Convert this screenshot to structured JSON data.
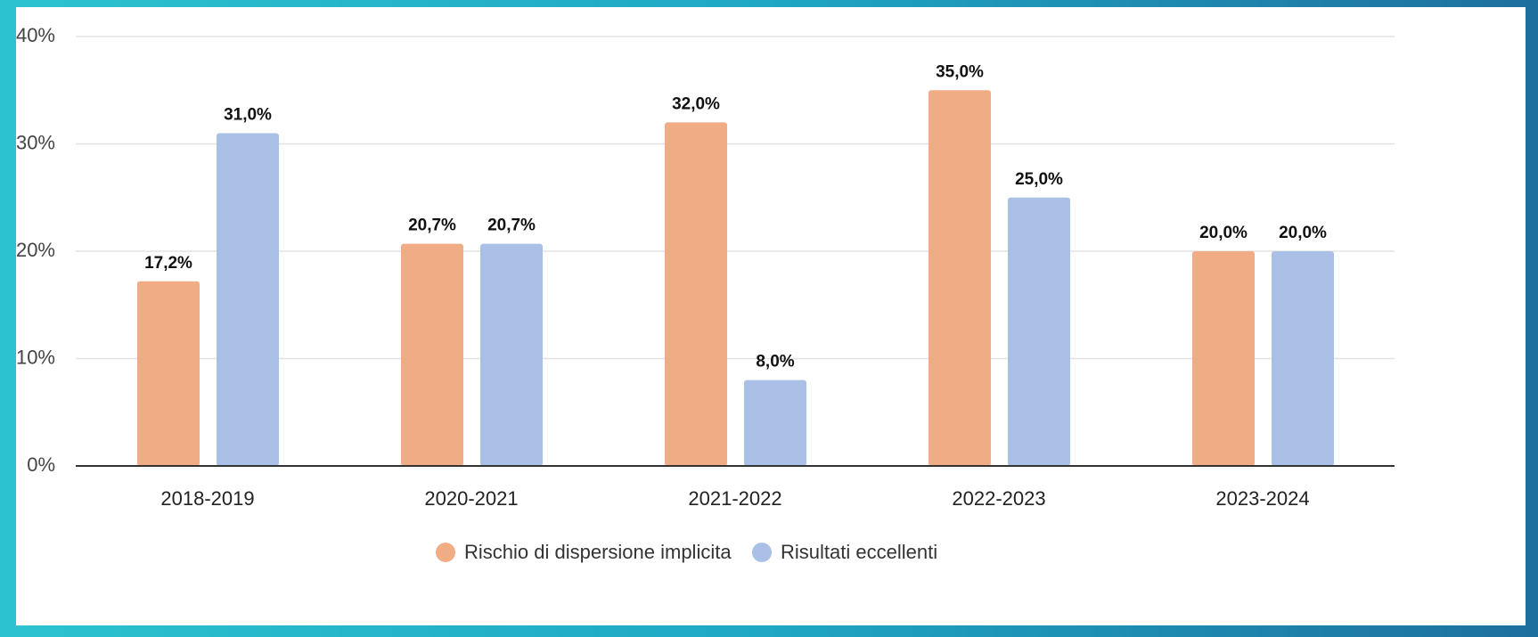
{
  "chart_data": {
    "type": "bar",
    "categories": [
      "2018-2019",
      "2020-2021",
      "2021-2022",
      "2022-2023",
      "2023-2024"
    ],
    "series": [
      {
        "name": "Rischio di dispersione implicita",
        "color": "#f0ac84",
        "values": [
          17.2,
          20.7,
          32.0,
          35.0,
          20.0
        ],
        "value_labels": [
          "17,2%",
          "20,7%",
          "32,0%",
          "35,0%",
          "20,0%"
        ]
      },
      {
        "name": "Risultati eccellenti",
        "color": "#aac0e6",
        "values": [
          31.0,
          20.7,
          8.0,
          25.0,
          20.0
        ],
        "value_labels": [
          "31,0%",
          "20,7%",
          "8,0%",
          "25,0%",
          "20,0%"
        ]
      }
    ],
    "ylim": [
      0,
      40
    ],
    "yticks": [
      {
        "value": 0,
        "label": "0%"
      },
      {
        "value": 10,
        "label": "10%"
      },
      {
        "value": 20,
        "label": "20%"
      },
      {
        "value": 30,
        "label": "30%"
      },
      {
        "value": 40,
        "label": "40%"
      }
    ],
    "grid": true,
    "legend": "bottom"
  }
}
